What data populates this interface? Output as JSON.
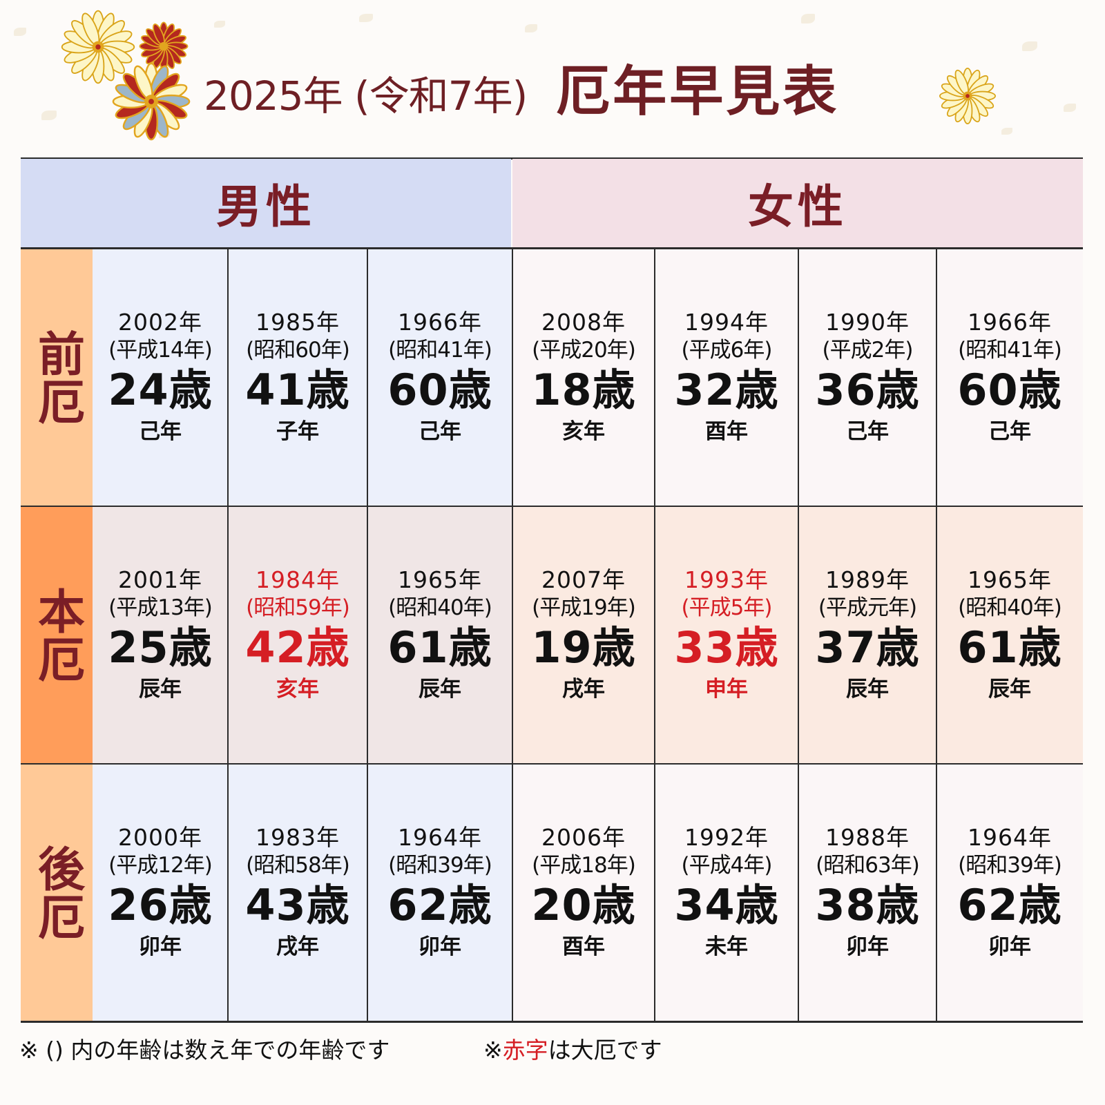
{
  "title": {
    "sub": "2025年 (令和7年)",
    "main": "厄年早見表"
  },
  "headers": {
    "male": "男性",
    "female": "女性"
  },
  "rows": [
    {
      "label": "前厄",
      "cells": [
        {
          "year": "2002年",
          "era": "(平成14年)",
          "age": "24歳",
          "zodiac": "己年",
          "red": false
        },
        {
          "year": "1985年",
          "era": "(昭和60年)",
          "age": "41歳",
          "zodiac": "子年",
          "red": false
        },
        {
          "year": "1966年",
          "era": "(昭和41年)",
          "age": "60歳",
          "zodiac": "己年",
          "red": false
        },
        {
          "year": "2008年",
          "era": "(平成20年)",
          "age": "18歳",
          "zodiac": "亥年",
          "red": false
        },
        {
          "year": "1994年",
          "era": "(平成6年)",
          "age": "32歳",
          "zodiac": "酉年",
          "red": false
        },
        {
          "year": "1990年",
          "era": "(平成2年)",
          "age": "36歳",
          "zodiac": "己年",
          "red": false
        },
        {
          "year": "1966年",
          "era": "(昭和41年)",
          "age": "60歳",
          "zodiac": "己年",
          "red": false
        }
      ]
    },
    {
      "label": "本厄",
      "cells": [
        {
          "year": "2001年",
          "era": "(平成13年)",
          "age": "25歳",
          "zodiac": "辰年",
          "red": false
        },
        {
          "year": "1984年",
          "era": "(昭和59年)",
          "age": "42歳",
          "zodiac": "亥年",
          "red": true
        },
        {
          "year": "1965年",
          "era": "(昭和40年)",
          "age": "61歳",
          "zodiac": "辰年",
          "red": false
        },
        {
          "year": "2007年",
          "era": "(平成19年)",
          "age": "19歳",
          "zodiac": "戌年",
          "red": false
        },
        {
          "year": "1993年",
          "era": "(平成5年)",
          "age": "33歳",
          "zodiac": "申年",
          "red": true
        },
        {
          "year": "1989年",
          "era": "(平成元年)",
          "age": "37歳",
          "zodiac": "辰年",
          "red": false
        },
        {
          "year": "1965年",
          "era": "(昭和40年)",
          "age": "61歳",
          "zodiac": "辰年",
          "red": false
        }
      ]
    },
    {
      "label": "後厄",
      "cells": [
        {
          "year": "2000年",
          "era": "(平成12年)",
          "age": "26歳",
          "zodiac": "卯年",
          "red": false
        },
        {
          "year": "1983年",
          "era": "(昭和58年)",
          "age": "43歳",
          "zodiac": "戌年",
          "red": false
        },
        {
          "year": "1964年",
          "era": "(昭和39年)",
          "age": "62歳",
          "zodiac": "卯年",
          "red": false
        },
        {
          "year": "2006年",
          "era": "(平成18年)",
          "age": "20歳",
          "zodiac": "酉年",
          "red": false
        },
        {
          "year": "1992年",
          "era": "(平成4年)",
          "age": "34歳",
          "zodiac": "未年",
          "red": false
        },
        {
          "year": "1988年",
          "era": "(昭和63年)",
          "age": "38歳",
          "zodiac": "卯年",
          "red": false
        },
        {
          "year": "1964年",
          "era": "(昭和39年)",
          "age": "62歳",
          "zodiac": "卯年",
          "red": false
        }
      ]
    }
  ],
  "footnote": {
    "note1": "※ () 内の年齢は数え年での年齢です",
    "note2_prefix": "※",
    "note2_red": "赤字",
    "note2_suffix": "は大厄です"
  },
  "colors": {
    "title": "#6e1f24",
    "label_text": "#7a1e26",
    "emphasis_red": "#d51e24",
    "male_header_bg": "#d5dcf4",
    "female_header_bg": "#f3e0e6",
    "row_label_bg": [
      "#ffc997",
      "#ff9d5a",
      "#ffc997"
    ],
    "male_cell_bg": [
      "#ecf0fb",
      "#f0e6e6",
      "#ecf0fb"
    ],
    "female_cell_bg": [
      "#fbf6f7",
      "#fbeae1",
      "#fbf6f7"
    ]
  },
  "icons": [
    "chrysanthemum-icon"
  ]
}
